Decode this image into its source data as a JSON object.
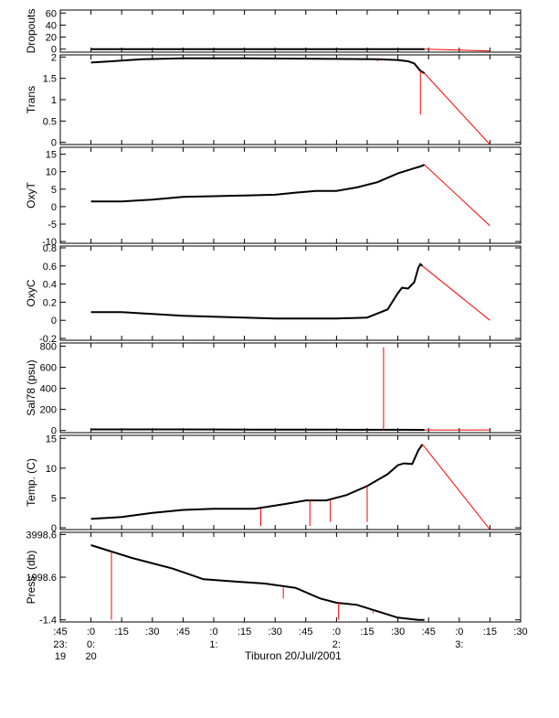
{
  "chart_data": {
    "type": "line",
    "title": "",
    "xlabel": "Tiburon 20/Jul/2001",
    "x_tick_labels": [
      ":45",
      ":0",
      ":15",
      ":30",
      ":45",
      ":0",
      ":15",
      ":30",
      ":45",
      ":0",
      ":15",
      ":30",
      ":45",
      ":0",
      ":15",
      ":30"
    ],
    "x_hour_labels": [
      {
        "minute": 0,
        "text": "0:"
      },
      {
        "minute": 60,
        "text": "1:"
      },
      {
        "minute": 120,
        "text": "2:"
      },
      {
        "minute": 180,
        "text": "3:"
      }
    ],
    "x_start_labels": {
      "hour": "23:",
      "day_before": "19",
      "day": "20"
    },
    "xlim_minutes": [
      -15,
      210
    ],
    "panels": [
      {
        "ylabel": "Dropouts",
        "ylim": [
          -5,
          65
        ],
        "yticks": [
          0,
          20,
          40,
          60
        ],
        "black": [
          [
            0,
            0
          ],
          [
            30,
            0
          ],
          [
            60,
            0
          ],
          [
            90,
            0
          ],
          [
            120,
            0
          ],
          [
            150,
            0
          ],
          [
            163,
            0
          ]
        ],
        "red": [
          [
            163,
            0
          ],
          [
            195,
            -3
          ]
        ],
        "spikes": []
      },
      {
        "ylabel": "Trans",
        "ylim": [
          -0.05,
          2.05
        ],
        "yticks": [
          0.0,
          0.5,
          1.0,
          1.5,
          2.0
        ],
        "black": [
          [
            0,
            1.87
          ],
          [
            10,
            1.9
          ],
          [
            25,
            1.95
          ],
          [
            45,
            1.97
          ],
          [
            75,
            1.97
          ],
          [
            110,
            1.96
          ],
          [
            140,
            1.95
          ],
          [
            150,
            1.93
          ],
          [
            155,
            1.9
          ],
          [
            158,
            1.85
          ],
          [
            161,
            1.68
          ],
          [
            163,
            1.62
          ]
        ],
        "red": [
          [
            163,
            1.62
          ],
          [
            195,
            -0.05
          ]
        ],
        "spikes": [
          [
            140,
            1.9
          ],
          [
            161,
            0.65
          ]
        ]
      },
      {
        "ylabel": "OxyT",
        "ylim": [
          -10.5,
          17
        ],
        "yticks": [
          -10,
          -5,
          0,
          5,
          10,
          15
        ],
        "black": [
          [
            0,
            1.5
          ],
          [
            15,
            1.5
          ],
          [
            30,
            2
          ],
          [
            45,
            2.8
          ],
          [
            60,
            3
          ],
          [
            75,
            3.2
          ],
          [
            90,
            3.4
          ],
          [
            100,
            4
          ],
          [
            110,
            4.5
          ],
          [
            120,
            4.5
          ],
          [
            130,
            5.5
          ],
          [
            140,
            7
          ],
          [
            150,
            9.5
          ],
          [
            158,
            11
          ],
          [
            161,
            11.5
          ],
          [
            163,
            12
          ]
        ],
        "red": [
          [
            163,
            12
          ],
          [
            195,
            -5.5
          ]
        ],
        "spikes": []
      },
      {
        "ylabel": "OxyC",
        "ylim": [
          -0.22,
          0.82
        ],
        "yticks": [
          -0.2,
          0.0,
          0.2,
          0.4,
          0.6,
          0.8
        ],
        "black": [
          [
            0,
            0.09
          ],
          [
            15,
            0.09
          ],
          [
            30,
            0.07
          ],
          [
            45,
            0.05
          ],
          [
            60,
            0.04
          ],
          [
            75,
            0.03
          ],
          [
            90,
            0.02
          ],
          [
            105,
            0.02
          ],
          [
            120,
            0.02
          ],
          [
            135,
            0.03
          ],
          [
            145,
            0.12
          ],
          [
            150,
            0.3
          ],
          [
            152,
            0.36
          ],
          [
            155,
            0.35
          ],
          [
            158,
            0.42
          ],
          [
            160,
            0.58
          ],
          [
            161,
            0.62
          ],
          [
            162,
            0.6
          ]
        ],
        "red": [
          [
            162,
            0.6
          ],
          [
            195,
            0.0
          ]
        ],
        "spikes": []
      },
      {
        "ylabel": "Sal78 (psu)",
        "ylim": [
          -20,
          830
        ],
        "yticks": [
          0,
          200,
          400,
          600,
          800
        ],
        "black": [
          [
            0,
            10
          ],
          [
            40,
            10
          ],
          [
            80,
            9
          ],
          [
            120,
            8
          ],
          [
            150,
            7
          ],
          [
            163,
            6
          ]
        ],
        "red": [
          [
            163,
            5
          ],
          [
            195,
            5
          ]
        ],
        "spikes": [
          [
            143,
            790
          ]
        ]
      },
      {
        "ylabel": "Temp. (C)",
        "ylim": [
          -0.3,
          15.5
        ],
        "yticks": [
          0,
          5,
          10,
          15
        ],
        "black": [
          [
            0,
            1.5
          ],
          [
            15,
            1.8
          ],
          [
            30,
            2.5
          ],
          [
            45,
            3
          ],
          [
            60,
            3.2
          ],
          [
            80,
            3.2
          ],
          [
            95,
            4
          ],
          [
            105,
            4.6
          ],
          [
            115,
            4.6
          ],
          [
            125,
            5.5
          ],
          [
            135,
            7
          ],
          [
            145,
            9
          ],
          [
            150,
            10.5
          ],
          [
            153,
            10.8
          ],
          [
            157,
            10.7
          ],
          [
            160,
            13
          ],
          [
            162,
            14
          ]
        ],
        "red": [
          [
            162,
            14
          ],
          [
            195,
            -0.3
          ]
        ],
        "spikes": [
          [
            83,
            0.3
          ],
          [
            107,
            0.3
          ],
          [
            117,
            1
          ],
          [
            135,
            1
          ]
        ]
      },
      {
        "ylabel": "Press. (db)",
        "ylim": [
          -100,
          4100
        ],
        "yticks": [
          -1.4,
          1998.6,
          3998.6
        ],
        "ytick_labels": [
          "-1.4",
          "1998.6",
          "3998.6"
        ],
        "black": [
          [
            0,
            3500
          ],
          [
            10,
            3200
          ],
          [
            20,
            2900
          ],
          [
            40,
            2400
          ],
          [
            55,
            1900
          ],
          [
            70,
            1800
          ],
          [
            85,
            1700
          ],
          [
            100,
            1500
          ],
          [
            112,
            1000
          ],
          [
            120,
            800
          ],
          [
            130,
            700
          ],
          [
            140,
            400
          ],
          [
            150,
            100
          ],
          [
            160,
            0
          ],
          [
            163,
            0
          ]
        ],
        "red": [],
        "spikes": [
          [
            10,
            0
          ],
          [
            94,
            1000
          ],
          [
            121,
            0
          ],
          [
            138,
            300
          ]
        ]
      }
    ]
  }
}
